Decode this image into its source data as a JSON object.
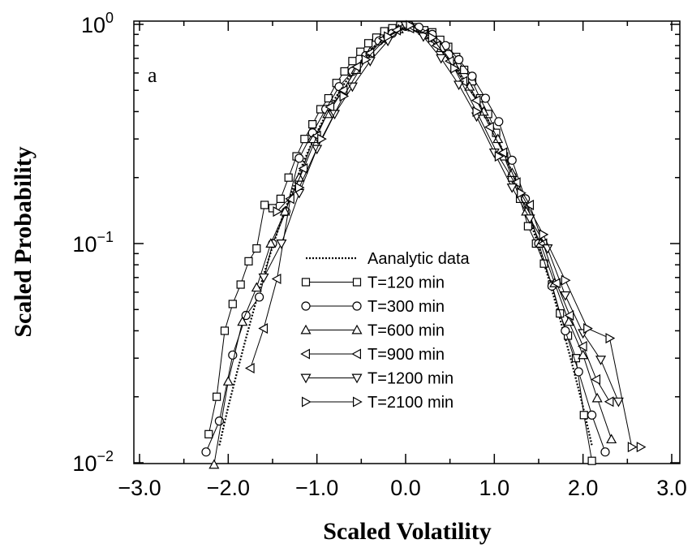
{
  "chart_data": {
    "type": "line",
    "panel_label": "a",
    "xlabel": "Scaled Volatility",
    "ylabel": "Scaled Probability",
    "xlim": [
      -3.0,
      3.0
    ],
    "ylim": [
      0.009,
      1.0
    ],
    "yscale": "log",
    "x_ticks": [
      "−3.0",
      "−2.0",
      "−1.0",
      "0.0",
      "1.0",
      "2.0",
      "3.0"
    ],
    "y_ticks": [
      {
        "base": "10",
        "exp": "0"
      },
      {
        "base": "10",
        "exp": "−1"
      },
      {
        "base": "10",
        "exp": "−2"
      }
    ],
    "grid": false,
    "legend_position": "center",
    "series": [
      {
        "name": "Aanalytic data",
        "marker": "none",
        "dashed": true,
        "x": [
          -2.1,
          -2.0,
          -1.9,
          -1.8,
          -1.7,
          -1.6,
          -1.5,
          -1.4,
          -1.3,
          -1.2,
          -1.1,
          -1.0,
          -0.9,
          -0.8,
          -0.7,
          -0.6,
          -0.5,
          -0.4,
          -0.3,
          -0.2,
          -0.1,
          0.0,
          0.1,
          0.2,
          0.3,
          0.4,
          0.5,
          0.6,
          0.7,
          0.8,
          0.9,
          1.0,
          1.1,
          1.2,
          1.3,
          1.4,
          1.5,
          1.6,
          1.7,
          1.8,
          1.9,
          2.0,
          2.1
        ],
        "y": [
          0.012,
          0.018,
          0.026,
          0.037,
          0.052,
          0.072,
          0.097,
          0.128,
          0.166,
          0.211,
          0.263,
          0.322,
          0.386,
          0.455,
          0.53,
          0.6,
          0.682,
          0.76,
          0.83,
          0.9,
          0.955,
          0.98,
          0.955,
          0.9,
          0.83,
          0.76,
          0.682,
          0.6,
          0.53,
          0.455,
          0.386,
          0.322,
          0.263,
          0.211,
          0.166,
          0.128,
          0.097,
          0.072,
          0.052,
          0.037,
          0.026,
          0.018,
          0.012
        ]
      },
      {
        "name": "T=120 min",
        "marker": "square",
        "x": [
          -2.22,
          -2.13,
          -2.04,
          -1.95,
          -1.86,
          -1.77,
          -1.68,
          -1.59,
          -1.5,
          -1.41,
          -1.32,
          -1.23,
          -1.14,
          -1.05,
          -0.96,
          -0.87,
          -0.78,
          -0.69,
          -0.6,
          -0.51,
          -0.42,
          -0.33,
          -0.24,
          -0.15,
          -0.06,
          0.03,
          0.12,
          0.21,
          0.3,
          0.39,
          0.48,
          0.57,
          0.66,
          0.75,
          0.84,
          0.93,
          1.02,
          1.11,
          1.2,
          1.29,
          1.38,
          1.47,
          1.56,
          1.65,
          1.74,
          1.83,
          1.92,
          2.01,
          2.1
        ],
        "y": [
          0.0135,
          0.02,
          0.04,
          0.053,
          0.065,
          0.083,
          0.095,
          0.15,
          0.145,
          0.16,
          0.2,
          0.25,
          0.3,
          0.35,
          0.41,
          0.46,
          0.54,
          0.61,
          0.68,
          0.75,
          0.82,
          0.87,
          0.93,
          0.96,
          0.99,
          0.99,
          0.97,
          0.94,
          0.92,
          0.85,
          0.79,
          0.71,
          0.62,
          0.55,
          0.46,
          0.39,
          0.32,
          0.25,
          0.2,
          0.16,
          0.12,
          0.1,
          0.081,
          0.065,
          0.048,
          0.038,
          0.03,
          0.0165,
          0.0102
        ]
      },
      {
        "name": "T=300 min",
        "marker": "circle",
        "x": [
          -2.25,
          -2.1,
          -1.95,
          -1.8,
          -1.65,
          -1.5,
          -1.35,
          -1.2,
          -1.05,
          -0.9,
          -0.75,
          -0.6,
          -0.45,
          -0.3,
          -0.15,
          0.0,
          0.15,
          0.3,
          0.45,
          0.6,
          0.75,
          0.9,
          1.05,
          1.2,
          1.35,
          1.5,
          1.65,
          1.8,
          1.95,
          2.1,
          2.25
        ],
        "y": [
          0.0112,
          0.0155,
          0.031,
          0.047,
          0.057,
          0.1,
          0.14,
          0.245,
          0.32,
          0.41,
          0.52,
          0.61,
          0.72,
          0.84,
          0.91,
          0.98,
          0.97,
          0.9,
          0.8,
          0.69,
          0.58,
          0.46,
          0.36,
          0.24,
          0.16,
          0.1,
          0.064,
          0.04,
          0.026,
          0.0165,
          0.0112
        ]
      },
      {
        "name": "T=600 min",
        "marker": "triangle-up",
        "x": [
          -2.16,
          -2.0,
          -1.84,
          -1.68,
          -1.52,
          -1.36,
          -1.2,
          -1.04,
          -0.88,
          -0.72,
          -0.56,
          -0.4,
          -0.24,
          -0.08,
          0.08,
          0.24,
          0.4,
          0.56,
          0.72,
          0.88,
          1.04,
          1.2,
          1.36,
          1.52,
          1.68,
          1.84,
          2.0,
          2.16,
          2.32
        ],
        "y": [
          0.0098,
          0.0235,
          0.044,
          0.063,
          0.1,
          0.14,
          0.2,
          0.3,
          0.39,
          0.49,
          0.62,
          0.75,
          0.86,
          0.95,
          0.97,
          0.9,
          0.78,
          0.64,
          0.52,
          0.4,
          0.3,
          0.21,
          0.14,
          0.1,
          0.066,
          0.044,
          0.031,
          0.0197,
          0.0128
        ]
      },
      {
        "name": "T=900 min",
        "marker": "triangle-left",
        "x": [
          -1.75,
          -1.6,
          -1.45,
          -1.3,
          -1.15,
          -1.0,
          -0.85,
          -0.7,
          -0.55,
          -0.4,
          -0.25,
          -0.1,
          0.05,
          0.2,
          0.35,
          0.5,
          0.65,
          0.8,
          0.95,
          1.1,
          1.25,
          1.4,
          1.55,
          1.7,
          1.85,
          2.0,
          2.15,
          2.3
        ],
        "y": [
          0.027,
          0.041,
          0.069,
          0.16,
          0.22,
          0.31,
          0.42,
          0.5,
          0.64,
          0.74,
          0.86,
          0.94,
          0.96,
          0.9,
          0.8,
          0.68,
          0.55,
          0.45,
          0.34,
          0.26,
          0.19,
          0.15,
          0.1,
          0.066,
          0.047,
          0.034,
          0.024,
          0.019
        ]
      },
      {
        "name": "T=1200 min",
        "marker": "triangle-down",
        "x": [
          -1.6,
          -1.4,
          -1.2,
          -1.0,
          -0.8,
          -0.6,
          -0.4,
          -0.2,
          0.0,
          0.2,
          0.4,
          0.6,
          0.8,
          1.0,
          1.2,
          1.4,
          1.6,
          1.8,
          2.0,
          2.2,
          2.4
        ],
        "y": [
          0.07,
          0.1,
          0.17,
          0.27,
          0.39,
          0.52,
          0.68,
          0.84,
          0.99,
          0.88,
          0.7,
          0.53,
          0.38,
          0.26,
          0.18,
          0.13,
          0.095,
          0.058,
          0.039,
          0.0295,
          0.019
        ]
      },
      {
        "name": "T=2100 min",
        "marker": "triangle-right",
        "x": [
          -1.45,
          -1.2,
          -0.95,
          -0.7,
          -0.45,
          -0.2,
          0.05,
          0.3,
          0.55,
          0.8,
          1.05,
          1.3,
          1.55,
          1.8,
          2.05,
          2.3,
          2.55,
          2.65
        ],
        "y": [
          0.14,
          0.18,
          0.3,
          0.47,
          0.69,
          0.88,
          0.99,
          0.87,
          0.63,
          0.4,
          0.25,
          0.17,
          0.11,
          0.068,
          0.041,
          0.037,
          0.0118,
          0.0118
        ]
      }
    ]
  }
}
